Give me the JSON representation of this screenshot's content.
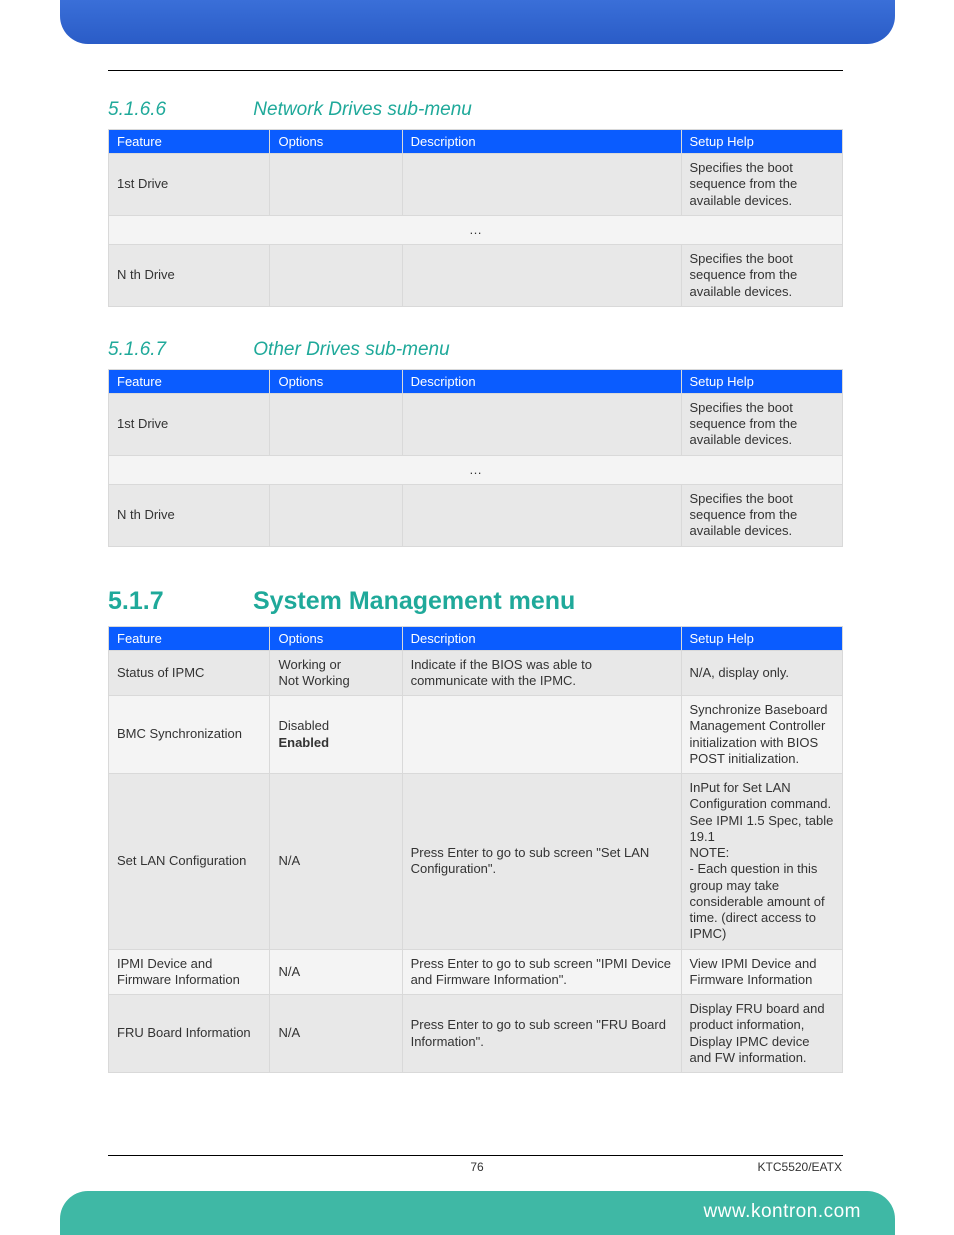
{
  "page": {
    "number": "76",
    "doc_code": "KTC5520/EATX",
    "footer_url": "www.kontron.com"
  },
  "colors": {
    "top_banner_start": "#3a6fd8",
    "top_banner_end": "#2a5cc7",
    "bottom_banner": "#3fb8a5",
    "heading": "#1fa99a",
    "table_header_bg": "#0a5cff",
    "table_header_fg": "#ffffff",
    "row_odd": "#e8e8e8",
    "row_even": "#f4f4f4",
    "border": "#d9d9d9"
  },
  "fonts": {
    "body_family": "Segoe UI / Lucida Sans / Arial",
    "sub_heading_pt": 19,
    "main_heading_pt": 25,
    "table_pt": 13,
    "footer_pt": 12
  },
  "sections": {
    "s5166": {
      "number": "5.1.6.6",
      "title": "Network Drives sub-menu",
      "headers": {
        "feature": "Feature",
        "options": "Options",
        "description": "Description",
        "help": "Setup Help"
      },
      "rows": {
        "r0": {
          "feature": "1st Drive",
          "options": "",
          "description": "",
          "help": "Specifies the boot sequence from the available devices."
        },
        "ellipsis": "…",
        "r1": {
          "feature": "N th Drive",
          "options": "",
          "description": "",
          "help": "Specifies the boot sequence from the available devices."
        }
      }
    },
    "s5167": {
      "number": "5.1.6.7",
      "title": "Other Drives sub-menu",
      "headers": {
        "feature": "Feature",
        "options": "Options",
        "description": "Description",
        "help": "Setup Help"
      },
      "rows": {
        "r0": {
          "feature": "1st Drive",
          "options": "",
          "description": "",
          "help": "Specifies the boot sequence from the available devices."
        },
        "ellipsis": "…",
        "r1": {
          "feature": "N th Drive",
          "options": "",
          "description": "",
          "help": "Specifies the boot sequence from the available devices."
        }
      }
    },
    "s517": {
      "number": "5.1.7",
      "title": "System Management menu",
      "headers": {
        "feature": "Feature",
        "options": "Options",
        "description": "Description",
        "help": "Setup Help"
      },
      "rows": {
        "r0": {
          "feature": "Status of IPMC",
          "options_l1": "Working or",
          "options_l2": "Not Working",
          "description": "Indicate if the BIOS was able to communicate with the IPMC.",
          "help": "N/A, display only."
        },
        "r1": {
          "feature": "BMC Synchronization",
          "options_l1": "Disabled",
          "options_l2": "Enabled",
          "description": "",
          "help": "Synchronize Baseboard Management Controller initialization with BIOS POST initialization."
        },
        "r2": {
          "feature": "Set LAN Configuration",
          "options": "N/A",
          "description": "Press Enter to go to sub screen \"Set LAN Configuration\".",
          "help_l1": "InPut for Set LAN Configuration command. See IPMI 1.5 Spec, table 19.1",
          "help_l2": "NOTE:",
          "help_l3": " - Each question in this group may take considerable amount of time. (direct access to IPMC)"
        },
        "r3": {
          "feature": "IPMI Device and Firmware Information",
          "options": "N/A",
          "description": "Press Enter to go to sub screen \"IPMI Device and Firmware Information\".",
          "help": "View IPMI Device and Firmware Information"
        },
        "r4": {
          "feature": "FRU Board Information",
          "options": "N/A",
          "description": "Press Enter to go to sub screen \"FRU Board Information\".",
          "help": "Display FRU board and product information, Display IPMC device and FW information."
        }
      }
    }
  }
}
